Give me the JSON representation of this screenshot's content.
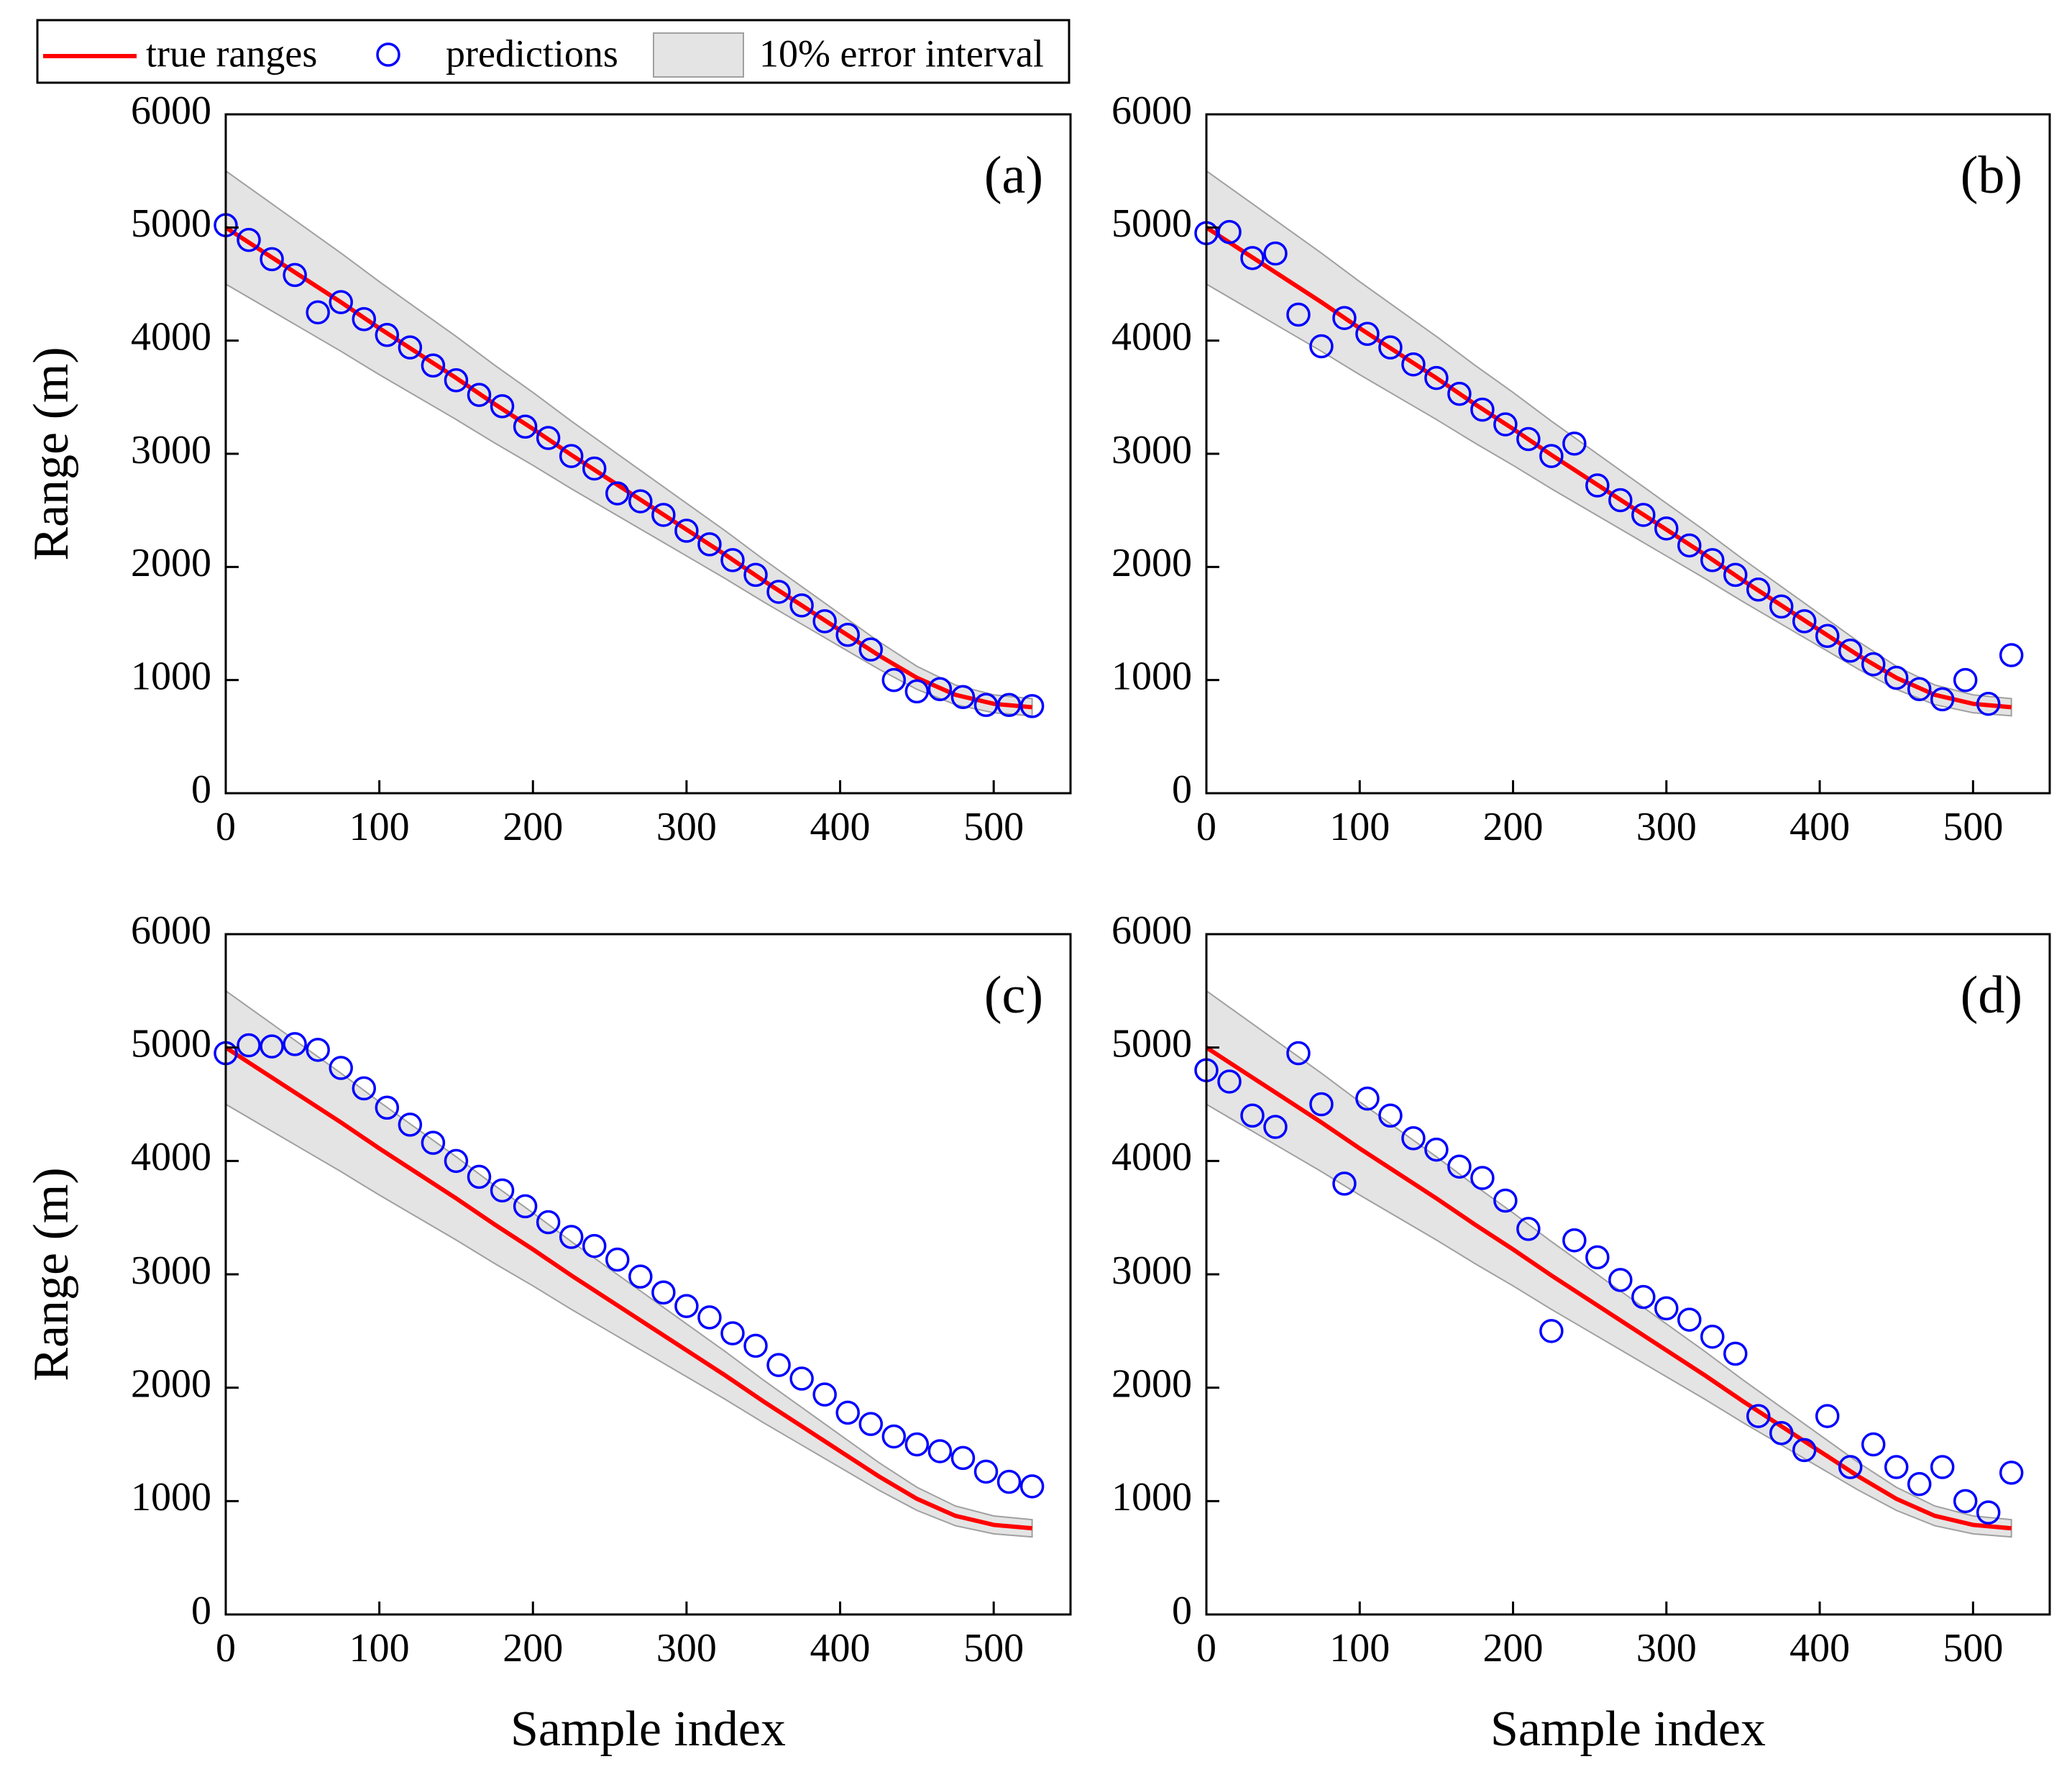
{
  "chart_data": [
    {
      "type": "scatter",
      "panel_label": "(a)",
      "ylabel": "Range (m)",
      "xlim": [
        0,
        550
      ],
      "ylim": [
        0,
        6000
      ],
      "xticks": [
        0,
        100,
        200,
        300,
        400,
        500
      ],
      "yticks": [
        0,
        1000,
        2000,
        3000,
        4000,
        5000,
        6000
      ],
      "series": [
        {
          "name": "10% error interval",
          "kind": "band",
          "color": "#d9d9d9",
          "x": [
            0,
            25,
            50,
            75,
            100,
            125,
            150,
            175,
            200,
            225,
            250,
            275,
            300,
            325,
            350,
            375,
            400,
            425,
            450,
            475,
            500,
            525
          ],
          "upper": [
            5500,
            5258,
            5016,
            4774,
            4521,
            4279,
            4037,
            3784,
            3542,
            3289,
            3047,
            2805,
            2563,
            2321,
            2068,
            1826,
            1584,
            1342,
            1122,
            957,
            869,
            836
          ],
          "lower": [
            4500,
            4302,
            4104,
            3906,
            3699,
            3501,
            3303,
            3096,
            2898,
            2691,
            2493,
            2295,
            2097,
            1899,
            1692,
            1494,
            1296,
            1098,
            918,
            783,
            711,
            684
          ]
        },
        {
          "name": "true ranges",
          "kind": "line",
          "color": "#ff0000",
          "x": [
            0,
            25,
            50,
            75,
            100,
            125,
            150,
            175,
            200,
            225,
            250,
            275,
            300,
            325,
            350,
            375,
            400,
            425,
            450,
            475,
            500,
            525
          ],
          "values": [
            5000,
            4780,
            4560,
            4340,
            4110,
            3890,
            3670,
            3440,
            3220,
            2990,
            2770,
            2550,
            2330,
            2110,
            1880,
            1660,
            1440,
            1220,
            1020,
            870,
            790,
            760
          ]
        },
        {
          "name": "predictions",
          "kind": "points",
          "color": "#0000ff",
          "x": [
            0,
            15,
            30,
            45,
            60,
            75,
            90,
            105,
            120,
            135,
            150,
            165,
            180,
            195,
            210,
            225,
            240,
            255,
            270,
            285,
            300,
            315,
            330,
            345,
            360,
            375,
            390,
            405,
            420,
            435,
            450,
            465,
            480,
            495,
            510,
            525
          ],
          "values": [
            5020,
            4890,
            4720,
            4580,
            4250,
            4340,
            4190,
            4050,
            3940,
            3780,
            3650,
            3520,
            3420,
            3240,
            3140,
            2980,
            2870,
            2650,
            2580,
            2460,
            2320,
            2200,
            2060,
            1930,
            1780,
            1660,
            1520,
            1400,
            1270,
            1000,
            900,
            920,
            850,
            780,
            780,
            770
          ]
        }
      ]
    },
    {
      "type": "scatter",
      "panel_label": "(b)",
      "xlim": [
        0,
        550
      ],
      "ylim": [
        0,
        6000
      ],
      "xticks": [
        0,
        100,
        200,
        300,
        400,
        500
      ],
      "yticks": [
        0,
        1000,
        2000,
        3000,
        4000,
        5000,
        6000
      ],
      "series": [
        {
          "kind": "band",
          "color": "#d9d9d9",
          "x": [
            0,
            25,
            50,
            75,
            100,
            125,
            150,
            175,
            200,
            225,
            250,
            275,
            300,
            325,
            350,
            375,
            400,
            425,
            450,
            475,
            500,
            525
          ],
          "upper": [
            5500,
            5258,
            5016,
            4774,
            4521,
            4279,
            4037,
            3784,
            3542,
            3289,
            3047,
            2805,
            2563,
            2321,
            2068,
            1826,
            1584,
            1342,
            1122,
            957,
            869,
            836
          ],
          "lower": [
            4500,
            4302,
            4104,
            3906,
            3699,
            3501,
            3303,
            3096,
            2898,
            2691,
            2493,
            2295,
            2097,
            1899,
            1692,
            1494,
            1296,
            1098,
            918,
            783,
            711,
            684
          ]
        },
        {
          "kind": "line",
          "color": "#ff0000",
          "x": [
            0,
            25,
            50,
            75,
            100,
            125,
            150,
            175,
            200,
            225,
            250,
            275,
            300,
            325,
            350,
            375,
            400,
            425,
            450,
            475,
            500,
            525
          ],
          "values": [
            5000,
            4780,
            4560,
            4340,
            4110,
            3890,
            3670,
            3440,
            3220,
            2990,
            2770,
            2550,
            2330,
            2110,
            1880,
            1660,
            1440,
            1220,
            1020,
            870,
            790,
            760
          ]
        },
        {
          "kind": "points",
          "color": "#0000ff",
          "x": [
            0,
            15,
            30,
            45,
            60,
            75,
            90,
            105,
            120,
            135,
            150,
            165,
            180,
            195,
            210,
            225,
            240,
            255,
            270,
            285,
            300,
            315,
            330,
            345,
            360,
            375,
            390,
            405,
            420,
            435,
            450,
            465,
            480,
            495,
            510,
            525
          ],
          "values": [
            4950,
            4960,
            4730,
            4770,
            4230,
            3950,
            4200,
            4060,
            3940,
            3790,
            3670,
            3530,
            3390,
            3260,
            3130,
            2980,
            3090,
            2720,
            2590,
            2460,
            2340,
            2190,
            2060,
            1930,
            1800,
            1650,
            1520,
            1390,
            1260,
            1140,
            1020,
            920,
            830,
            1000,
            790,
            1220
          ]
        }
      ]
    },
    {
      "type": "scatter",
      "panel_label": "(c)",
      "ylabel": "Range (m)",
      "xlabel": "Sample index",
      "xlim": [
        0,
        550
      ],
      "ylim": [
        0,
        6000
      ],
      "xticks": [
        0,
        100,
        200,
        300,
        400,
        500
      ],
      "yticks": [
        0,
        1000,
        2000,
        3000,
        4000,
        5000,
        6000
      ],
      "series": [
        {
          "kind": "band",
          "color": "#d9d9d9",
          "x": [
            0,
            25,
            50,
            75,
            100,
            125,
            150,
            175,
            200,
            225,
            250,
            275,
            300,
            325,
            350,
            375,
            400,
            425,
            450,
            475,
            500,
            525
          ],
          "upper": [
            5500,
            5258,
            5016,
            4774,
            4521,
            4279,
            4037,
            3784,
            3542,
            3289,
            3047,
            2805,
            2563,
            2321,
            2068,
            1826,
            1584,
            1342,
            1122,
            957,
            869,
            836
          ],
          "lower": [
            4500,
            4302,
            4104,
            3906,
            3699,
            3501,
            3303,
            3096,
            2898,
            2691,
            2493,
            2295,
            2097,
            1899,
            1692,
            1494,
            1296,
            1098,
            918,
            783,
            711,
            684
          ]
        },
        {
          "kind": "line",
          "color": "#ff0000",
          "x": [
            0,
            25,
            50,
            75,
            100,
            125,
            150,
            175,
            200,
            225,
            250,
            275,
            300,
            325,
            350,
            375,
            400,
            425,
            450,
            475,
            500,
            525
          ],
          "values": [
            5000,
            4780,
            4560,
            4340,
            4110,
            3890,
            3670,
            3440,
            3220,
            2990,
            2770,
            2550,
            2330,
            2110,
            1880,
            1660,
            1440,
            1220,
            1020,
            870,
            790,
            760
          ]
        },
        {
          "kind": "points",
          "color": "#0000ff",
          "x": [
            0,
            15,
            30,
            45,
            60,
            75,
            90,
            105,
            120,
            135,
            150,
            165,
            180,
            195,
            210,
            225,
            240,
            255,
            270,
            285,
            300,
            315,
            330,
            345,
            360,
            375,
            390,
            405,
            420,
            435,
            450,
            465,
            480,
            495,
            510,
            525
          ],
          "values": [
            4950,
            5020,
            5010,
            5030,
            4980,
            4820,
            4640,
            4470,
            4320,
            4160,
            4000,
            3860,
            3740,
            3600,
            3460,
            3330,
            3250,
            3130,
            2980,
            2840,
            2720,
            2620,
            2480,
            2370,
            2200,
            2080,
            1940,
            1780,
            1680,
            1570,
            1500,
            1440,
            1380,
            1260,
            1170,
            1130
          ]
        }
      ]
    },
    {
      "type": "scatter",
      "panel_label": "(d)",
      "xlabel": "Sample index",
      "xlim": [
        0,
        550
      ],
      "ylim": [
        0,
        6000
      ],
      "xticks": [
        0,
        100,
        200,
        300,
        400,
        500
      ],
      "yticks": [
        0,
        1000,
        2000,
        3000,
        4000,
        5000,
        6000
      ],
      "series": [
        {
          "kind": "band",
          "color": "#d9d9d9",
          "x": [
            0,
            25,
            50,
            75,
            100,
            125,
            150,
            175,
            200,
            225,
            250,
            275,
            300,
            325,
            350,
            375,
            400,
            425,
            450,
            475,
            500,
            525
          ],
          "upper": [
            5500,
            5258,
            5016,
            4774,
            4521,
            4279,
            4037,
            3784,
            3542,
            3289,
            3047,
            2805,
            2563,
            2321,
            2068,
            1826,
            1584,
            1342,
            1122,
            957,
            869,
            836
          ],
          "lower": [
            4500,
            4302,
            4104,
            3906,
            3699,
            3501,
            3303,
            3096,
            2898,
            2691,
            2493,
            2295,
            2097,
            1899,
            1692,
            1494,
            1296,
            1098,
            918,
            783,
            711,
            684
          ]
        },
        {
          "kind": "line",
          "color": "#ff0000",
          "x": [
            0,
            25,
            50,
            75,
            100,
            125,
            150,
            175,
            200,
            225,
            250,
            275,
            300,
            325,
            350,
            375,
            400,
            425,
            450,
            475,
            500,
            525
          ],
          "values": [
            5000,
            4780,
            4560,
            4340,
            4110,
            3890,
            3670,
            3440,
            3220,
            2990,
            2770,
            2550,
            2330,
            2110,
            1880,
            1660,
            1440,
            1220,
            1020,
            870,
            790,
            760
          ]
        },
        {
          "kind": "points",
          "color": "#0000ff",
          "x": [
            0,
            15,
            30,
            45,
            60,
            75,
            90,
            105,
            120,
            135,
            150,
            165,
            180,
            195,
            210,
            225,
            240,
            255,
            270,
            285,
            300,
            315,
            330,
            345,
            360,
            375,
            390,
            405,
            420,
            435,
            450,
            465,
            480,
            495,
            510,
            525
          ],
          "values": [
            4800,
            4700,
            4400,
            4300,
            4950,
            4500,
            3800,
            4550,
            4400,
            4200,
            4100,
            3950,
            3850,
            3650,
            3400,
            2500,
            3300,
            3150,
            2950,
            2800,
            2700,
            2600,
            2450,
            2300,
            1750,
            1600,
            1450,
            1750,
            1300,
            1500,
            1300,
            1150,
            1300,
            1000,
            900,
            1250
          ]
        }
      ]
    }
  ]
}
